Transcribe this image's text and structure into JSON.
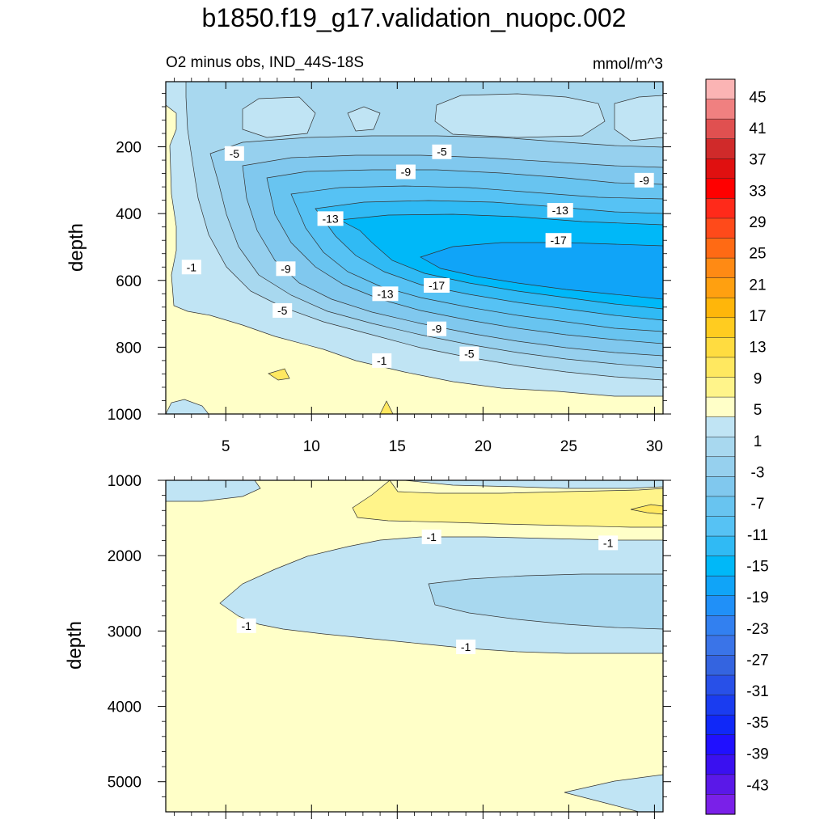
{
  "chart_data": {
    "type": "contour",
    "title": "b1850.f19_g17.validation_nuopc.002",
    "colorbar": {
      "labels": [
        "45",
        "41",
        "37",
        "33",
        "29",
        "25",
        "21",
        "17",
        "13",
        "9",
        "5",
        "1",
        "-3",
        "-7",
        "-11",
        "-15",
        "-19",
        "-23",
        "-27",
        "-31",
        "-35",
        "-39",
        "-43"
      ],
      "colors": [
        "#fbb4b4",
        "#f08080",
        "#e05050",
        "#d02a2a",
        "#e01010",
        "#ff0000",
        "#ff2a1a",
        "#ff4a1a",
        "#ff6a14",
        "#ff8a14",
        "#ffa010",
        "#ffb60a",
        "#ffcc20",
        "#ffdc40",
        "#ffe860",
        "#fff48a",
        "#ffffc8",
        "#c0e4f4",
        "#a8d8ef",
        "#96d0ee",
        "#80c8ee",
        "#68c4f0",
        "#56c2f4",
        "#30baf4",
        "#00b8f8",
        "#10a4f8",
        "#2090f8",
        "#3280f0",
        "#3a74e8",
        "#3464e0",
        "#2850e8",
        "#1a3cf0",
        "#1028f8",
        "#2010ff",
        "#3a10f0",
        "#5a18e8",
        "#7a20e8"
      ]
    },
    "panels": [
      {
        "name": "upper",
        "subtitle_left": "O2 minus obs, IND_44S-18S",
        "subtitle_right": "mmol/m^3",
        "ylabel": "depth",
        "xlim": [
          1.5,
          30.5
        ],
        "ylim": [
          1000,
          5
        ],
        "xticks": [
          "5",
          "10",
          "15",
          "20",
          "25",
          "30"
        ],
        "yticks": [
          "200",
          "400",
          "600",
          "800",
          "1000"
        ],
        "contour_labels": [
          {
            "x": 5.5,
            "y": 220,
            "text": "-5"
          },
          {
            "x": 17.6,
            "y": 215,
            "text": "-5"
          },
          {
            "x": 15.5,
            "y": 275,
            "text": "-9"
          },
          {
            "x": 29.4,
            "y": 300,
            "text": "-9"
          },
          {
            "x": 24.5,
            "y": 390,
            "text": "-13"
          },
          {
            "x": 11.1,
            "y": 415,
            "text": "-13"
          },
          {
            "x": 24.4,
            "y": 480,
            "text": "-17"
          },
          {
            "x": 3.0,
            "y": 560,
            "text": "-1"
          },
          {
            "x": 8.5,
            "y": 565,
            "text": "-9"
          },
          {
            "x": 17.3,
            "y": 615,
            "text": "-17"
          },
          {
            "x": 14.3,
            "y": 640,
            "text": "-13"
          },
          {
            "x": 8.3,
            "y": 690,
            "text": "-5"
          },
          {
            "x": 17.3,
            "y": 745,
            "text": "-9"
          },
          {
            "x": 19.2,
            "y": 820,
            "text": "-5"
          },
          {
            "x": 14.1,
            "y": 840,
            "text": "-1"
          }
        ]
      },
      {
        "name": "lower",
        "ylabel": "depth",
        "xlim": [
          1.5,
          30.5
        ],
        "ylim": [
          5400,
          1000
        ],
        "yticks": [
          "1000",
          "2000",
          "3000",
          "4000",
          "5000"
        ],
        "contour_labels": [
          {
            "x": 17.0,
            "y": 1750,
            "text": "-1"
          },
          {
            "x": 27.3,
            "y": 1830,
            "text": "-1"
          },
          {
            "x": 6.2,
            "y": 2930,
            "text": "-1"
          },
          {
            "x": 19.0,
            "y": 3210,
            "text": "-1"
          }
        ]
      }
    ]
  }
}
